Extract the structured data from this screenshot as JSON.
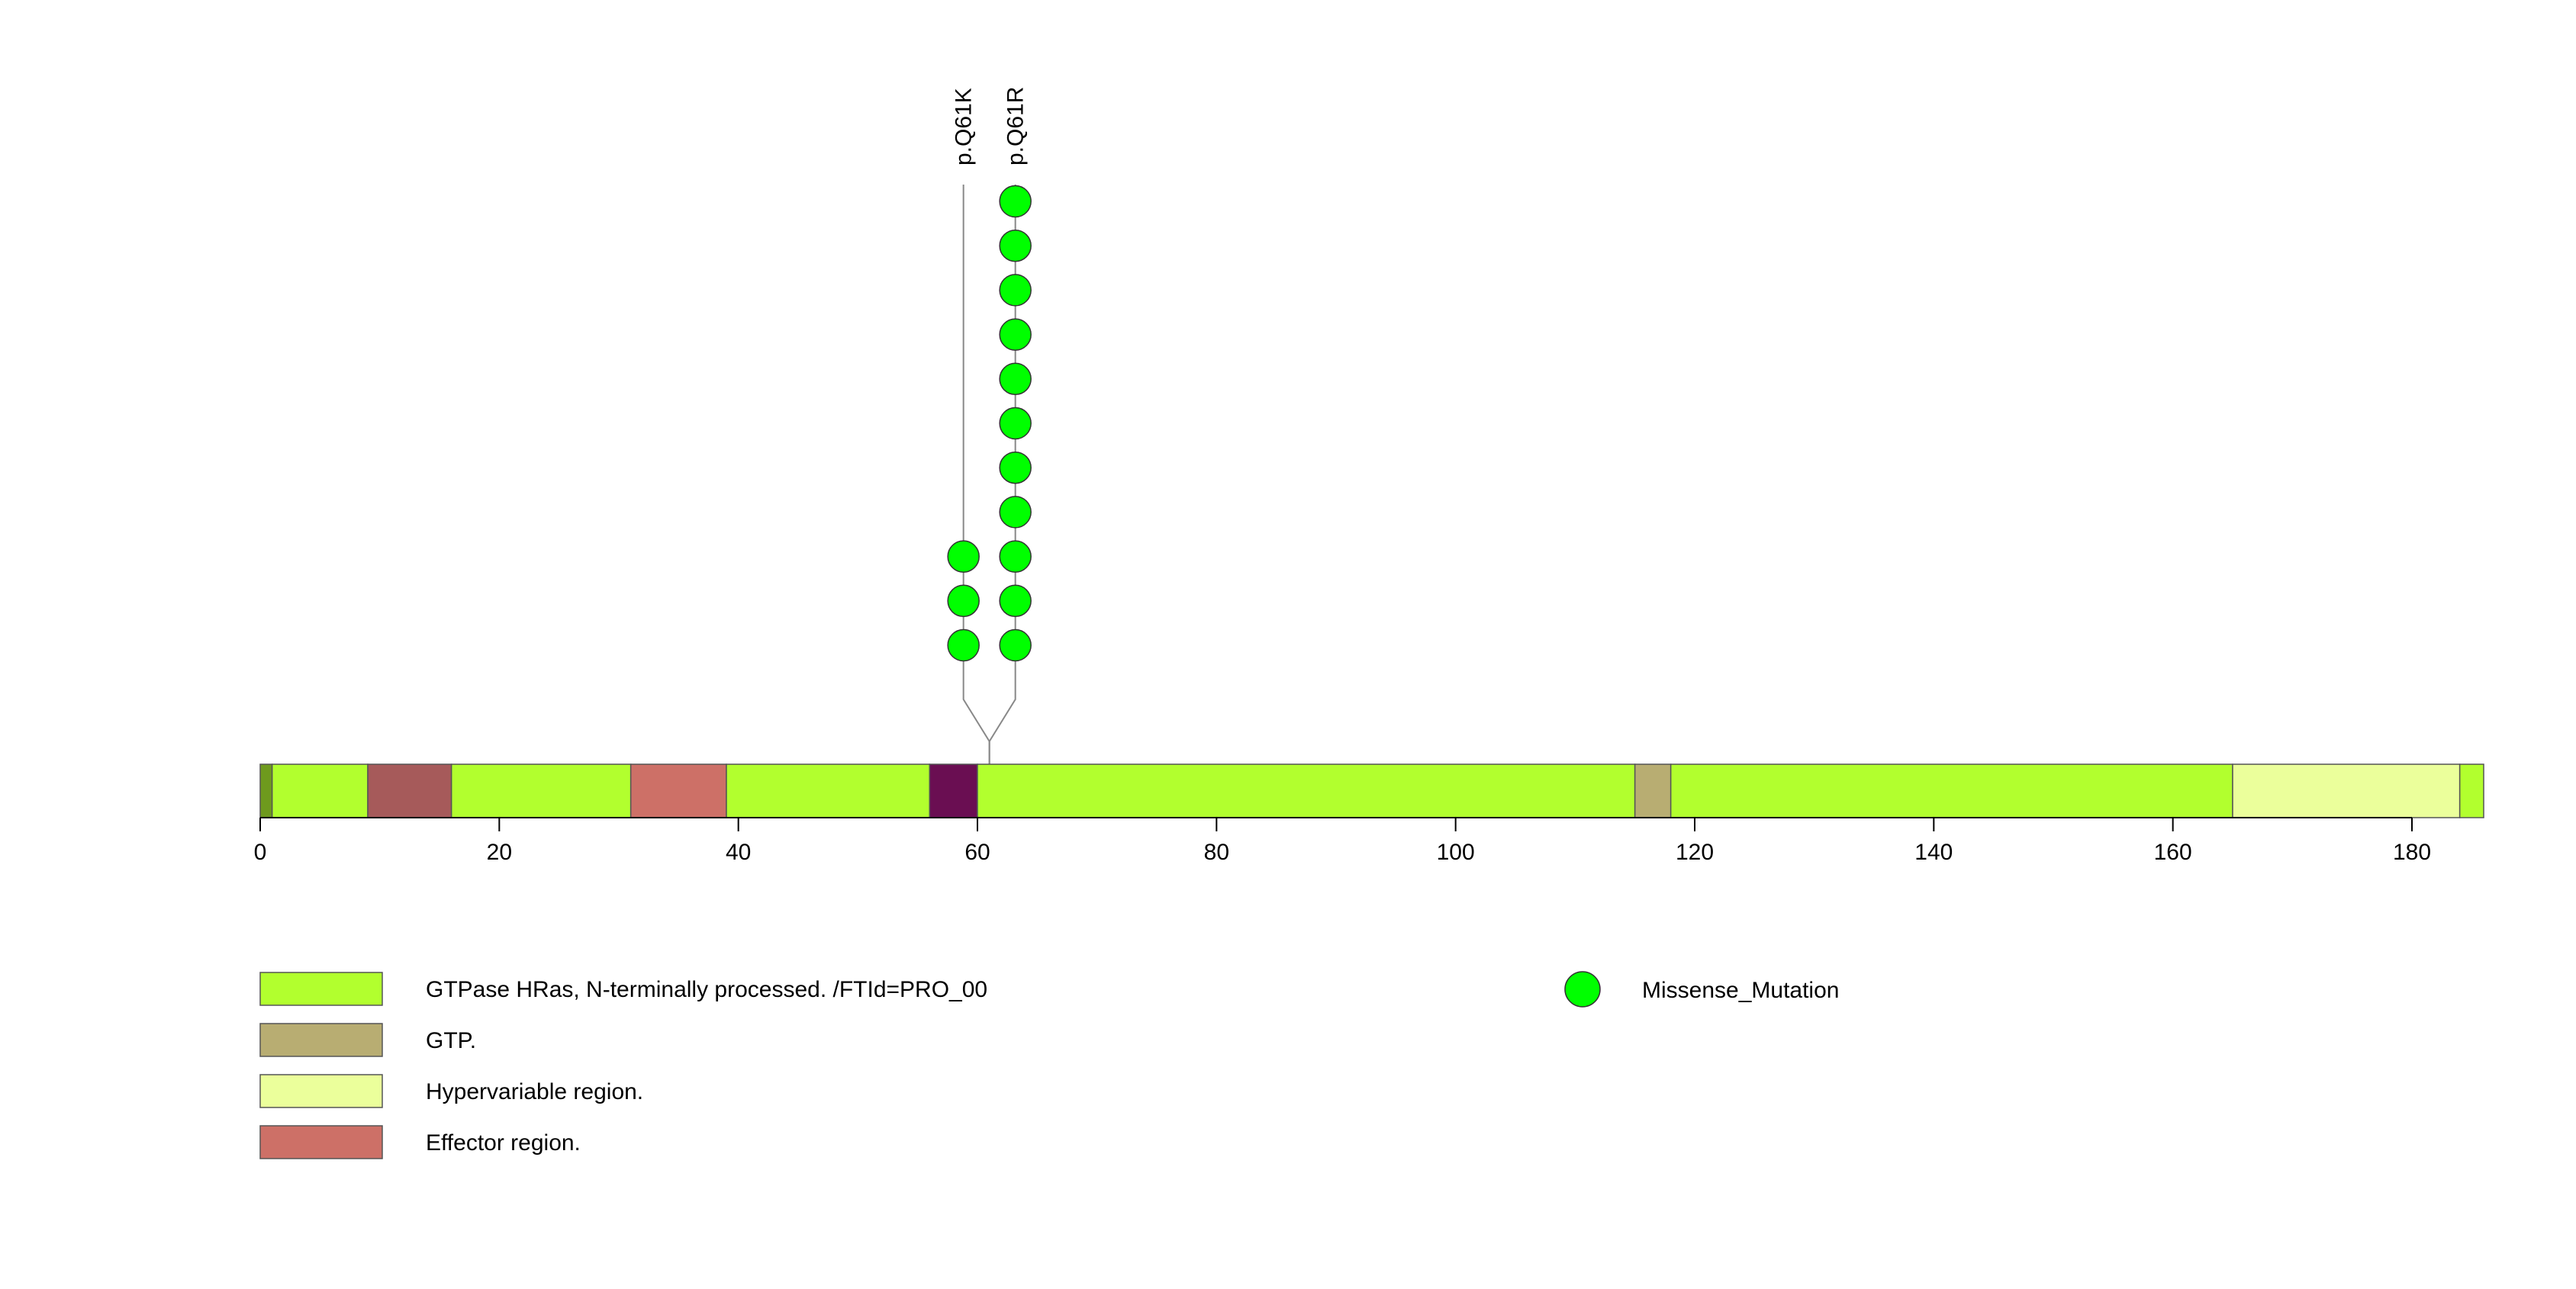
{
  "chart_data": {
    "type": "lollipop",
    "protein_length": 186,
    "x_ticks": [
      0,
      20,
      40,
      60,
      80,
      100,
      120,
      140,
      160,
      180
    ],
    "segments": [
      {
        "start": 0,
        "end": 1,
        "color": "#6e9a1d",
        "legend_index": null
      },
      {
        "start": 1,
        "end": 9,
        "color": "#b2ff2e",
        "legend_index": 0
      },
      {
        "start": 9,
        "end": 16,
        "color": "#a65a5a",
        "legend_index": null
      },
      {
        "start": 16,
        "end": 31,
        "color": "#b2ff2e",
        "legend_index": 0
      },
      {
        "start": 31,
        "end": 39,
        "color": "#cd7067",
        "legend_index": 3
      },
      {
        "start": 39,
        "end": 56,
        "color": "#b2ff2e",
        "legend_index": 0
      },
      {
        "start": 56,
        "end": 60,
        "color": "#6a0e52",
        "legend_index": null
      },
      {
        "start": 60,
        "end": 115,
        "color": "#b2ff2e",
        "legend_index": 0
      },
      {
        "start": 115,
        "end": 118,
        "color": "#b8ad72",
        "legend_index": 1
      },
      {
        "start": 118,
        "end": 165,
        "color": "#b2ff2e",
        "legend_index": 0
      },
      {
        "start": 165,
        "end": 184,
        "color": "#ebff9b",
        "legend_index": 2
      },
      {
        "start": 184,
        "end": 186,
        "color": "#b2ff2e",
        "legend_index": 0
      }
    ],
    "mutations": [
      {
        "label": "p.Q61K",
        "position": 61,
        "count": 3,
        "type": "Missense_Mutation"
      },
      {
        "label": "p.Q61R",
        "position": 61,
        "count": 11,
        "type": "Missense_Mutation"
      }
    ],
    "legend": [
      {
        "label": "GTPase HRas, N-terminally processed. /FTId=PRO_00",
        "color": "#b2ff2e"
      },
      {
        "label": "GTP.",
        "color": "#b8ad72"
      },
      {
        "label": "Hypervariable region.",
        "color": "#ebff9b"
      },
      {
        "label": "Effector region.",
        "color": "#cd7067"
      }
    ],
    "mutation_legend": [
      {
        "label": "Missense_Mutation",
        "color": "#00ff00"
      }
    ]
  }
}
